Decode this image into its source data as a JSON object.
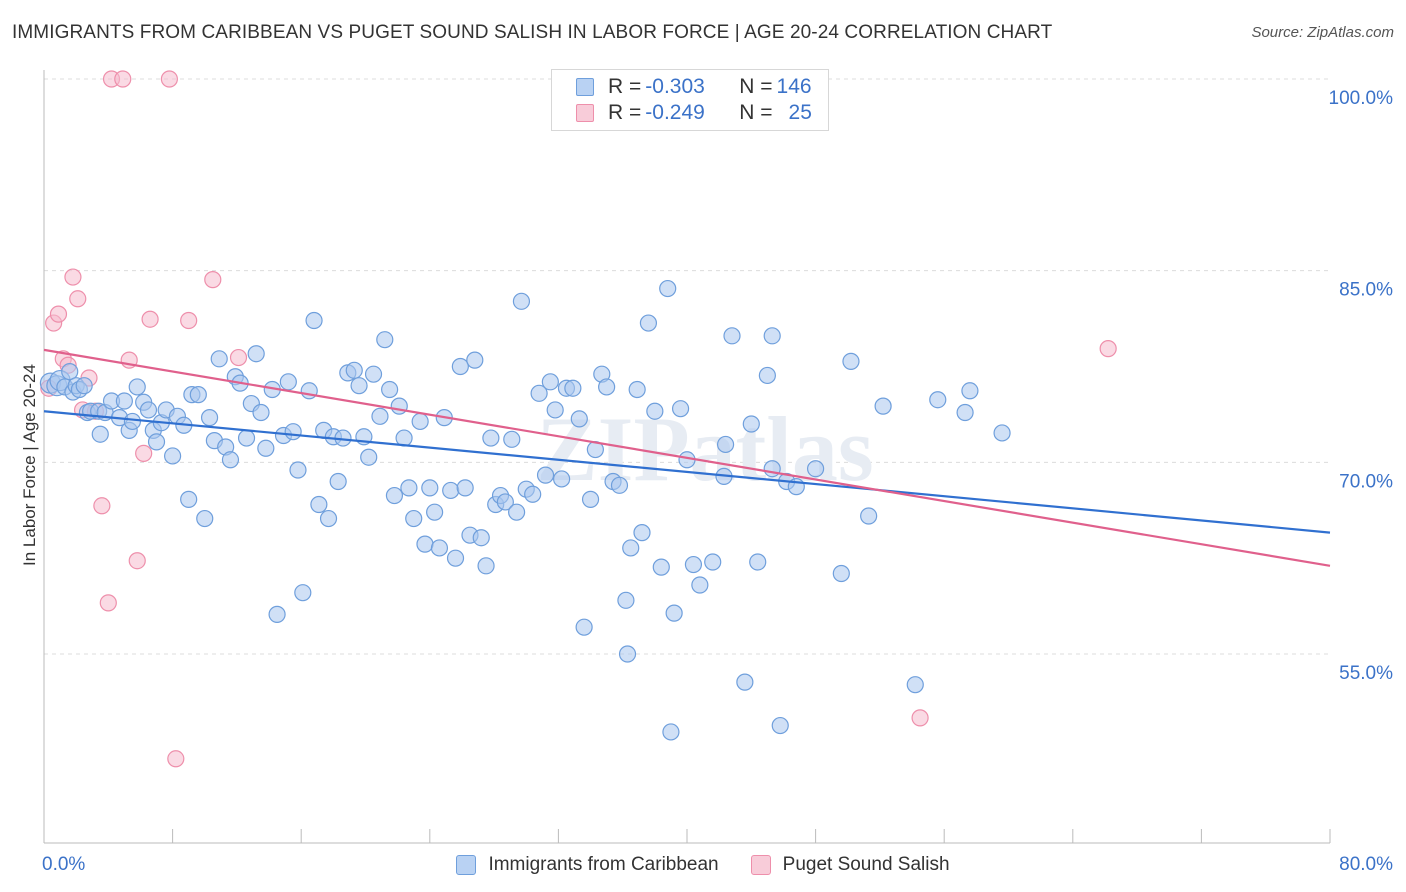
{
  "title": "IMMIGRANTS FROM CARIBBEAN VS PUGET SOUND SALISH IN LABOR FORCE | AGE 20-24 CORRELATION CHART",
  "source": "Source: ZipAtlas.com",
  "legend": {
    "rows": [
      {
        "r_label": "R = ",
        "r_value": "-0.303",
        "n_label": "N = ",
        "n_value": "146"
      },
      {
        "r_label": "R = ",
        "r_value": "-0.249",
        "n_label": "N = ",
        "n_value": "25"
      }
    ]
  },
  "watermark": "ZIPatlas",
  "chart_data": {
    "type": "scatter",
    "ylabel": "In Labor Force | Age 20-24",
    "xlim": [
      0,
      80
    ],
    "ylim": [
      40,
      104
    ],
    "x_tick_labels": [
      "0.0%",
      "80.0%"
    ],
    "y_ticks": [
      55,
      70,
      85,
      100
    ],
    "y_tick_labels": [
      "55.0%",
      "70.0%",
      "85.0%",
      "100.0%"
    ],
    "grid": true,
    "colors": {
      "caribbean_fill": "#a9c6ee",
      "caribbean_stroke": "#6f9fdc",
      "caribbean_line": "#3070d0",
      "salish_fill": "#f6bccd",
      "salish_stroke": "#ee8fab",
      "salish_line": "#e0608c",
      "axis_text": "#3b72c8"
    },
    "series": [
      {
        "name": "Immigrants from Caribbean",
        "trend": {
          "x": [
            0,
            80
          ],
          "y": [
            74.0,
            64.5
          ]
        },
        "points": [
          [
            0.4,
            76.2
          ],
          [
            0.8,
            76.0
          ],
          [
            1.0,
            76.4
          ],
          [
            1.3,
            75.9
          ],
          [
            1.6,
            77.1
          ],
          [
            1.8,
            75.5
          ],
          [
            2.0,
            76.0
          ],
          [
            2.2,
            75.7
          ],
          [
            2.5,
            76.0
          ],
          [
            2.7,
            73.9
          ],
          [
            2.9,
            74.0
          ],
          [
            3.4,
            74.0
          ],
          [
            3.5,
            72.2
          ],
          [
            3.8,
            73.9
          ],
          [
            4.2,
            74.8
          ],
          [
            4.7,
            73.5
          ],
          [
            5.0,
            74.8
          ],
          [
            5.3,
            72.5
          ],
          [
            5.5,
            73.2
          ],
          [
            5.8,
            75.9
          ],
          [
            6.2,
            74.7
          ],
          [
            6.5,
            74.1
          ],
          [
            6.8,
            72.5
          ],
          [
            7.0,
            71.6
          ],
          [
            7.3,
            73.1
          ],
          [
            7.6,
            74.1
          ],
          [
            8.0,
            70.5
          ],
          [
            8.3,
            73.6
          ],
          [
            8.7,
            72.9
          ],
          [
            9.0,
            67.1
          ],
          [
            9.2,
            75.3
          ],
          [
            9.6,
            75.3
          ],
          [
            10.0,
            65.6
          ],
          [
            10.3,
            73.5
          ],
          [
            10.6,
            71.7
          ],
          [
            10.9,
            78.1
          ],
          [
            11.3,
            71.2
          ],
          [
            11.6,
            70.2
          ],
          [
            11.9,
            76.7
          ],
          [
            12.2,
            76.2
          ],
          [
            12.6,
            71.9
          ],
          [
            12.9,
            74.6
          ],
          [
            13.2,
            78.5
          ],
          [
            13.5,
            73.9
          ],
          [
            13.8,
            71.1
          ],
          [
            14.2,
            75.7
          ],
          [
            14.5,
            58.1
          ],
          [
            14.9,
            72.1
          ],
          [
            15.2,
            76.3
          ],
          [
            15.5,
            72.4
          ],
          [
            15.8,
            69.4
          ],
          [
            16.1,
            59.8
          ],
          [
            16.5,
            75.6
          ],
          [
            16.8,
            81.1
          ],
          [
            17.1,
            66.7
          ],
          [
            17.4,
            72.5
          ],
          [
            17.7,
            65.6
          ],
          [
            18.0,
            72.0
          ],
          [
            18.3,
            68.5
          ],
          [
            18.6,
            71.9
          ],
          [
            18.9,
            77.0
          ],
          [
            19.3,
            77.2
          ],
          [
            19.6,
            76.0
          ],
          [
            19.9,
            72.0
          ],
          [
            20.2,
            70.4
          ],
          [
            20.5,
            76.9
          ],
          [
            20.9,
            73.6
          ],
          [
            21.2,
            79.6
          ],
          [
            21.5,
            75.7
          ],
          [
            21.8,
            67.4
          ],
          [
            22.1,
            74.4
          ],
          [
            22.4,
            71.9
          ],
          [
            22.7,
            68.0
          ],
          [
            23.0,
            65.6
          ],
          [
            23.4,
            73.2
          ],
          [
            23.7,
            63.6
          ],
          [
            24.0,
            68.0
          ],
          [
            24.3,
            66.1
          ],
          [
            24.6,
            63.3
          ],
          [
            24.9,
            73.5
          ],
          [
            25.3,
            67.8
          ],
          [
            25.6,
            62.5
          ],
          [
            25.9,
            77.5
          ],
          [
            26.2,
            68.0
          ],
          [
            26.5,
            64.3
          ],
          [
            26.8,
            78.0
          ],
          [
            27.2,
            64.1
          ],
          [
            27.5,
            61.9
          ],
          [
            27.8,
            71.9
          ],
          [
            28.1,
            66.7
          ],
          [
            28.4,
            67.4
          ],
          [
            28.7,
            66.9
          ],
          [
            29.1,
            71.8
          ],
          [
            29.4,
            66.1
          ],
          [
            29.7,
            82.6
          ],
          [
            30.0,
            67.9
          ],
          [
            30.4,
            67.5
          ],
          [
            30.8,
            75.4
          ],
          [
            31.2,
            69.0
          ],
          [
            31.5,
            76.3
          ],
          [
            31.8,
            74.1
          ],
          [
            32.2,
            68.7
          ],
          [
            32.5,
            75.8
          ],
          [
            32.9,
            75.8
          ],
          [
            33.3,
            73.4
          ],
          [
            33.6,
            57.1
          ],
          [
            34.0,
            67.1
          ],
          [
            34.3,
            71.0
          ],
          [
            34.7,
            76.9
          ],
          [
            35.0,
            75.9
          ],
          [
            35.4,
            68.5
          ],
          [
            35.8,
            68.2
          ],
          [
            36.2,
            59.2
          ],
          [
            36.5,
            63.3
          ],
          [
            36.9,
            75.7
          ],
          [
            37.2,
            64.5
          ],
          [
            37.6,
            80.9
          ],
          [
            38.0,
            74.0
          ],
          [
            38.4,
            61.8
          ],
          [
            38.8,
            83.6
          ],
          [
            39.2,
            58.2
          ],
          [
            39.6,
            74.2
          ],
          [
            40.0,
            70.2
          ],
          [
            40.4,
            62.0
          ],
          [
            40.8,
            60.4
          ],
          [
            41.6,
            62.2
          ],
          [
            42.4,
            71.4
          ],
          [
            42.8,
            79.9
          ],
          [
            43.6,
            52.8
          ],
          [
            44.0,
            73.0
          ],
          [
            44.4,
            62.2
          ],
          [
            45.0,
            76.8
          ],
          [
            45.3,
            79.9
          ],
          [
            45.8,
            49.4
          ],
          [
            46.2,
            68.5
          ],
          [
            46.8,
            68.1
          ],
          [
            48.0,
            69.5
          ],
          [
            49.6,
            61.3
          ],
          [
            50.2,
            77.9
          ],
          [
            51.3,
            65.8
          ],
          [
            52.2,
            74.4
          ],
          [
            54.2,
            52.6
          ],
          [
            55.6,
            74.9
          ],
          [
            57.3,
            73.9
          ],
          [
            57.6,
            75.6
          ],
          [
            59.6,
            72.3
          ],
          [
            42.3,
            68.9
          ],
          [
            36.3,
            55.0
          ],
          [
            39.0,
            48.9
          ],
          [
            45.3,
            69.5
          ]
        ]
      },
      {
        "name": "Puget Sound Salish",
        "trend": {
          "x": [
            0,
            80
          ],
          "y": [
            78.8,
            61.9
          ]
        },
        "points": [
          [
            0.3,
            75.8
          ],
          [
            0.6,
            80.9
          ],
          [
            0.9,
            81.6
          ],
          [
            1.2,
            78.1
          ],
          [
            1.5,
            77.6
          ],
          [
            1.8,
            84.5
          ],
          [
            2.1,
            82.8
          ],
          [
            2.4,
            74.1
          ],
          [
            2.8,
            76.6
          ],
          [
            3.2,
            74.0
          ],
          [
            3.6,
            66.6
          ],
          [
            4.0,
            59.0
          ],
          [
            4.2,
            100.0
          ],
          [
            4.9,
            100.0
          ],
          [
            5.3,
            78.0
          ],
          [
            5.8,
            62.3
          ],
          [
            6.2,
            70.7
          ],
          [
            6.6,
            81.2
          ],
          [
            7.8,
            100.0
          ],
          [
            8.2,
            46.8
          ],
          [
            9.0,
            81.1
          ],
          [
            10.5,
            84.3
          ],
          [
            12.1,
            78.2
          ],
          [
            54.5,
            50.0
          ],
          [
            66.2,
            78.9
          ]
        ]
      }
    ]
  }
}
